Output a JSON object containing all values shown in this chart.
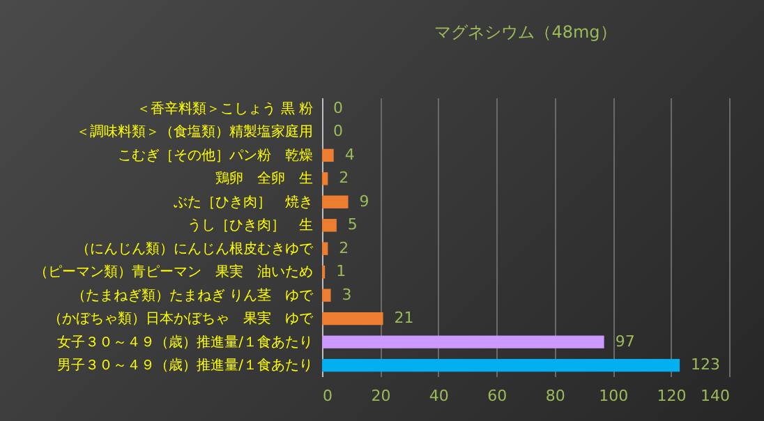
{
  "chart_data": {
    "type": "bar",
    "orientation": "horizontal",
    "title": "マグネシウム（48mg）",
    "categories": [
      "＜香辛料類＞こしょう 黒 粉",
      "＜調味料類＞（食塩類）精製塩家庭用",
      "こむぎ［その他］パン粉　乾燥",
      "鶏卵　全卵　生",
      "ぶた［ひき肉］　焼き",
      "うし［ひき肉］　生",
      "（にんじん類）にんじん根皮むきゆで",
      "（ピーマン類）青ピーマン　果実　油いため",
      "（たまねぎ類）たまねぎ りん茎　ゆで",
      "（かぼちゃ類）日本かぼちゃ　果実　ゆで",
      "女子３０～４９（歳）推進量/１食あたり",
      "男子３０～４９（歳）推進量/１食あたり"
    ],
    "values": [
      0,
      0,
      4,
      2,
      9,
      5,
      2,
      1,
      3,
      21,
      97,
      123
    ],
    "colors": [
      "#ed7d31",
      "#ed7d31",
      "#ed7d31",
      "#ed7d31",
      "#ed7d31",
      "#ed7d31",
      "#ed7d31",
      "#ed7d31",
      "#ed7d31",
      "#ed7d31",
      "#cc99ff",
      "#00b0f0"
    ],
    "xlim": [
      0,
      140
    ],
    "xticks": [
      0,
      20,
      40,
      60,
      80,
      100,
      120,
      140
    ],
    "grid": "x",
    "data_labels": true
  }
}
